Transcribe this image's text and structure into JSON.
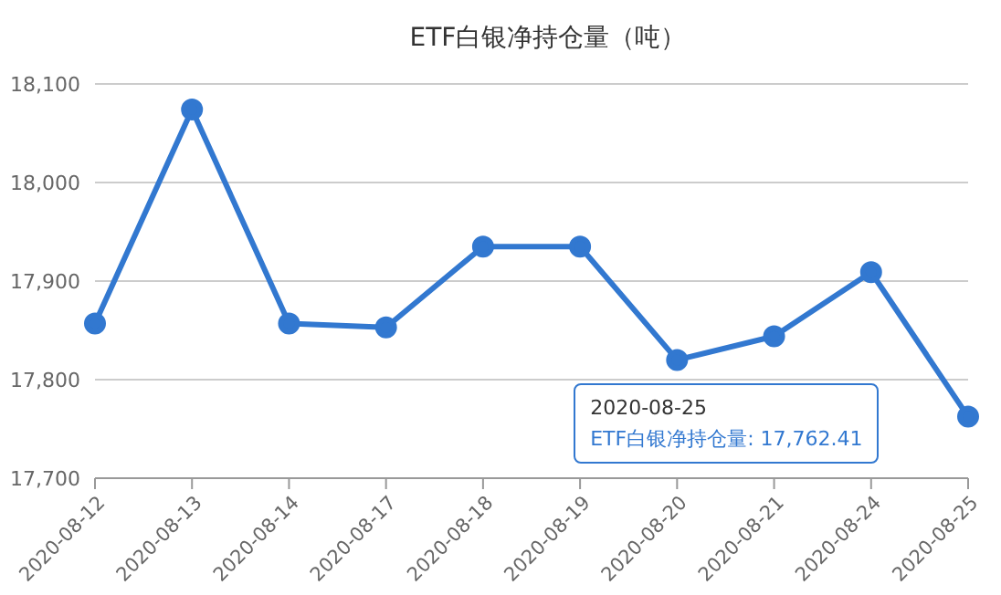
{
  "chart_data": {
    "type": "line",
    "title": "ETF白银净持仓量（吨）",
    "categories": [
      "2020-08-12",
      "2020-08-13",
      "2020-08-14",
      "2020-08-17",
      "2020-08-18",
      "2020-08-19",
      "2020-08-20",
      "2020-08-21",
      "2020-08-24",
      "2020-08-25"
    ],
    "series": [
      {
        "color": "#3278d0",
        "values": [
          17857,
          18074,
          17857,
          17853,
          17935,
          17935,
          17820,
          17844,
          17909,
          17762.41
        ]
      }
    ],
    "ylim": [
      17700,
      18100
    ],
    "yticks": [
      {
        "value": 17700,
        "label": "17,700"
      },
      {
        "value": 17800,
        "label": "17,800"
      },
      {
        "value": 17900,
        "label": "17,900"
      },
      {
        "value": 18000,
        "label": "18,000"
      },
      {
        "value": 18100,
        "label": "18,100"
      }
    ],
    "grid": "y",
    "marker": "circle",
    "legend": false,
    "annotations": [
      "2020-08-25",
      "ETF白银净持仓量: 17,762.41"
    ]
  }
}
